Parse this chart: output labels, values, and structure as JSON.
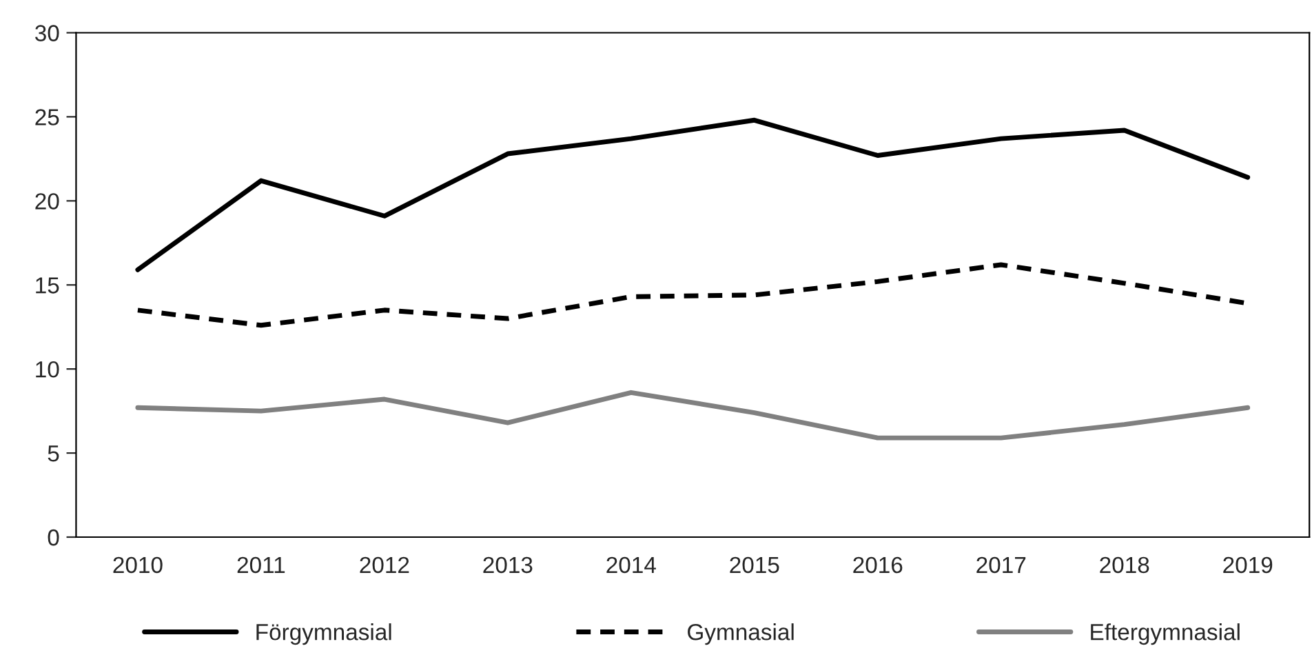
{
  "chart_data": {
    "type": "line",
    "categories": [
      "2010",
      "2011",
      "2012",
      "2013",
      "2014",
      "2015",
      "2016",
      "2017",
      "2018",
      "2019"
    ],
    "series": [
      {
        "name": "Förgymnasial",
        "color": "#000000",
        "line_style": "solid",
        "values": [
          15.9,
          21.2,
          19.1,
          22.8,
          23.7,
          24.8,
          22.7,
          23.7,
          24.2,
          21.4
        ]
      },
      {
        "name": "Gymnasial",
        "color": "#000000",
        "line_style": "dashed",
        "values": [
          13.5,
          12.6,
          13.5,
          13.0,
          14.3,
          14.4,
          15.2,
          16.2,
          15.1,
          13.9
        ]
      },
      {
        "name": "Eftergymnasial",
        "color": "#808080",
        "line_style": "solid",
        "values": [
          7.7,
          7.5,
          8.2,
          6.8,
          8.6,
          7.4,
          5.9,
          5.9,
          6.7,
          7.7
        ]
      }
    ],
    "ylim": [
      0,
      30
    ],
    "yticks": [
      0,
      5,
      10,
      15,
      20,
      25,
      30
    ],
    "grid": false,
    "legend": "bottom",
    "marker": "none"
  }
}
